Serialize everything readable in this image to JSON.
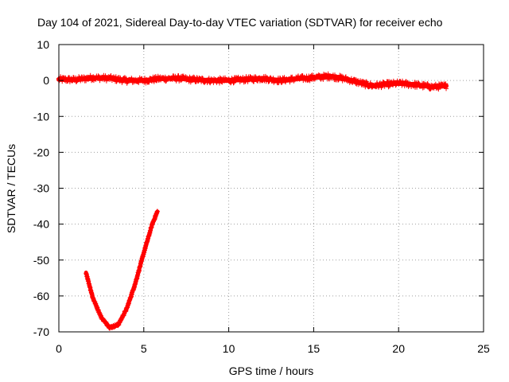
{
  "chart_data": {
    "type": "scatter",
    "title": "Day 104 of 2021, Sidereal Day-to-day VTEC variation (SDTVAR) for receiver echo",
    "xlabel": "GPS time / hours",
    "ylabel": "SDTVAR / TECUs",
    "xlim": [
      0,
      25
    ],
    "ylim": [
      -70,
      10
    ],
    "xticks": [
      0,
      5,
      10,
      15,
      20,
      25
    ],
    "yticks": [
      10,
      0,
      -10,
      -20,
      -30,
      -40,
      -50,
      -60,
      -70
    ],
    "grid": true,
    "legend": "none",
    "series_color": "#ff0000",
    "series": [
      {
        "name": "near-zero band",
        "x": [
          0.0,
          1.0,
          2.0,
          3.0,
          4.0,
          5.0,
          6.0,
          7.0,
          8.0,
          9.0,
          10.0,
          11.0,
          12.0,
          13.0,
          14.0,
          15.0,
          16.0,
          17.0,
          18.0,
          18.5,
          19.0,
          20.0,
          21.0,
          22.0,
          22.8
        ],
        "y": [
          0.3,
          0.2,
          0.8,
          0.6,
          0.0,
          0.0,
          0.5,
          0.6,
          0.2,
          0.0,
          0.0,
          0.3,
          0.6,
          0.0,
          0.5,
          0.8,
          1.2,
          0.3,
          -1.0,
          -1.5,
          -1.2,
          -0.8,
          -1.2,
          -1.8,
          -1.5
        ]
      },
      {
        "name": "dip arc",
        "x": [
          1.6,
          2.0,
          2.5,
          3.0,
          3.5,
          4.0,
          4.5,
          5.0,
          5.5,
          5.8
        ],
        "y": [
          -53.5,
          -60.5,
          -66.0,
          -68.8,
          -68.0,
          -63.5,
          -56.5,
          -48.0,
          -40.0,
          -36.5
        ]
      }
    ]
  }
}
